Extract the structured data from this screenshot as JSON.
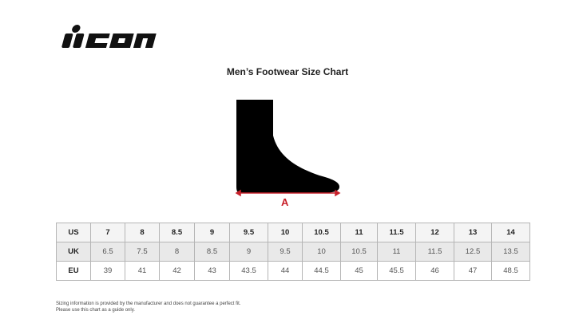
{
  "brand": {
    "logo": "icon"
  },
  "title": "Men’s Footwear Size Chart",
  "diagram": {
    "measure_label": "A",
    "accent": "#c8202a"
  },
  "table": {
    "rows": [
      {
        "label": "US",
        "values": [
          "7",
          "8",
          "8.5",
          "9",
          "9.5",
          "10",
          "10.5",
          "11",
          "11.5",
          "12",
          "13",
          "14"
        ]
      },
      {
        "label": "UK",
        "values": [
          "6.5",
          "7.5",
          "8",
          "8.5",
          "9",
          "9.5",
          "10",
          "10.5",
          "11",
          "11.5",
          "12.5",
          "13.5"
        ]
      },
      {
        "label": "EU",
        "values": [
          "39",
          "41",
          "42",
          "43",
          "43.5",
          "44",
          "44.5",
          "45",
          "45.5",
          "46",
          "47",
          "48.5"
        ]
      }
    ]
  },
  "note": [
    "Sizing information is provided by the manufacturer and does not guarantee a perfect fit.",
    "Please use this chart as a guide only."
  ]
}
